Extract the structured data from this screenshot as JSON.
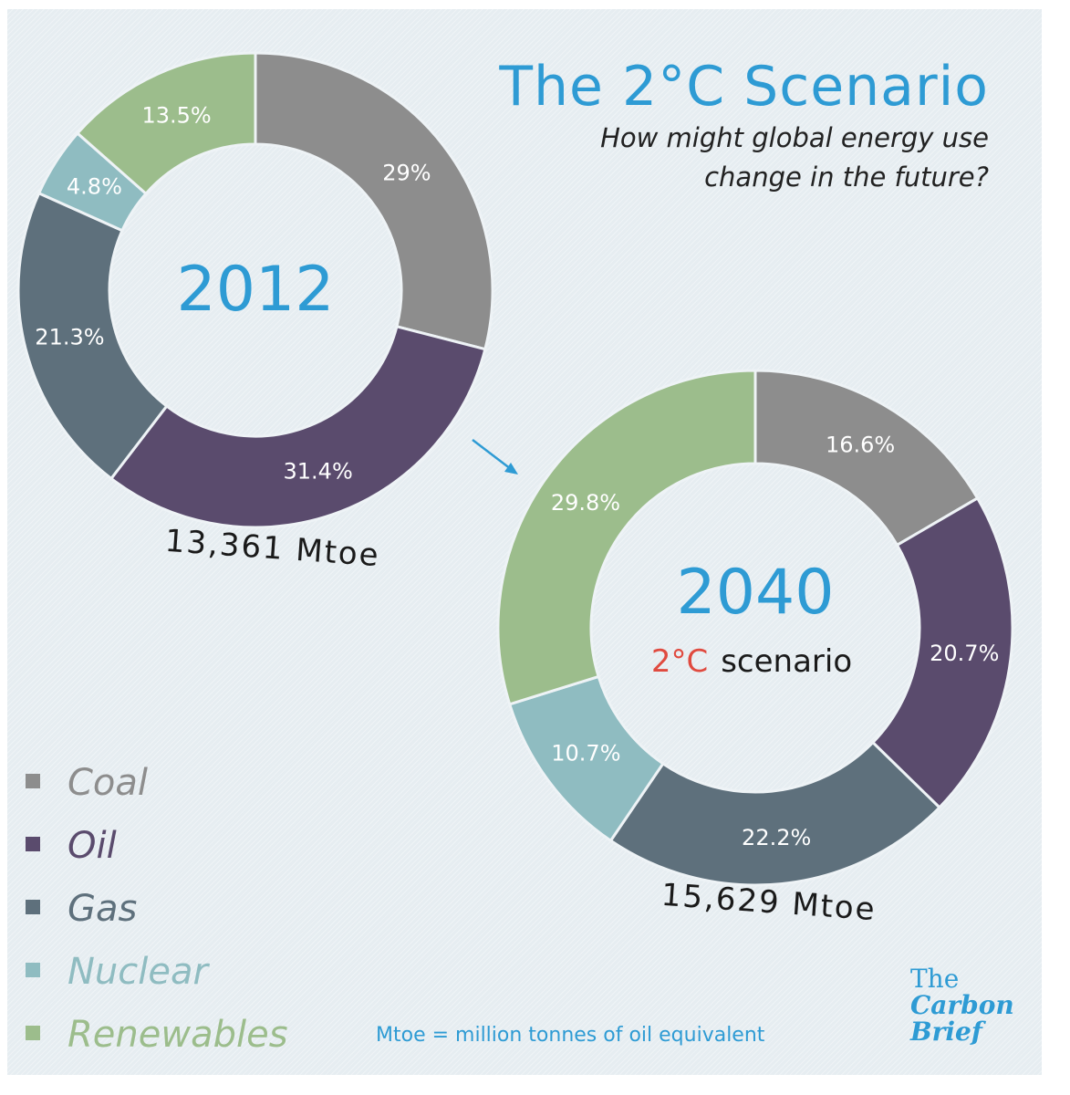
{
  "header": {
    "title": "The 2°C Scenario",
    "subtitle": "How might global energy use change in the future?"
  },
  "chart_data": [
    {
      "type": "pie",
      "donut": true,
      "title": "2012",
      "total_label": "13,361 Mtoe",
      "categories": [
        "Coal",
        "Oil",
        "Gas",
        "Nuclear",
        "Renewables"
      ],
      "values": [
        29,
        31.4,
        21.3,
        4.8,
        13.5
      ],
      "labels": [
        "29%",
        "31.4%",
        "21.3%",
        "4.8%",
        "13.5%"
      ]
    },
    {
      "type": "pie",
      "donut": true,
      "title": "2040",
      "subtitle_highlight": "2°C",
      "subtitle_rest": "scenario",
      "total_label": "15,629 Mtoe",
      "categories": [
        "Coal",
        "Oil",
        "Gas",
        "Nuclear",
        "Renewables"
      ],
      "values": [
        16.6,
        20.7,
        22.2,
        10.7,
        29.8
      ],
      "labels": [
        "16.6%",
        "20.7%",
        "22.2%",
        "10.7%",
        "29.8%"
      ]
    }
  ],
  "legend": [
    {
      "label": "Coal",
      "color": "#8d8d8d"
    },
    {
      "label": "Oil",
      "color": "#5a4b6d"
    },
    {
      "label": "Gas",
      "color": "#5e707c"
    },
    {
      "label": "Nuclear",
      "color": "#8fbcc1"
    },
    {
      "label": "Renewables",
      "color": "#9cbd8c"
    }
  ],
  "colors": {
    "accent": "#2e9bd4",
    "scenario_red": "#e04a3f"
  },
  "footnote": "Mtoe = million tonnes of oil equivalent",
  "brand": {
    "line1": "The",
    "line2": "Carbon",
    "line3": "Brief"
  }
}
